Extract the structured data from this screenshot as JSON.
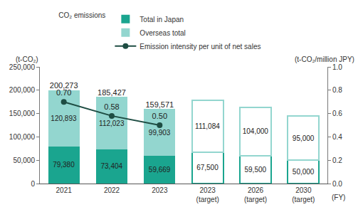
{
  "chart_data": {
    "type": "bar",
    "stacked": true,
    "data_labels": true,
    "grid": false,
    "legend": "top",
    "legend_title": "CO₂ emissions",
    "y_label": "(t-CO₂)",
    "y2_label": "(t-CO₂/million JPY)",
    "x_label": "(FY)",
    "categories": [
      "2021",
      "2022",
      "2023",
      "2023\n(target)",
      "2026\n(target)",
      "2030\n(target)"
    ],
    "series": [
      {
        "name": "Total in Japan",
        "color": "#1aa58f",
        "values": [
          79380,
          73404,
          59669,
          null,
          null,
          null
        ],
        "value_labels": [
          "79,380",
          "73,404",
          "59,669",
          null,
          null,
          null
        ]
      },
      {
        "name": "Overseas total",
        "color": "#93d6cf",
        "values": [
          120893,
          112023,
          99903,
          null,
          null,
          null
        ],
        "value_labels": [
          "120,893",
          "112,023",
          "99,903",
          null,
          null,
          null
        ]
      },
      {
        "color": "#1aa58f",
        "marker": "hollow",
        "values": [
          null,
          null,
          null,
          67500,
          59500,
          50000
        ],
        "value_labels": [
          null,
          null,
          null,
          "67,500",
          "59,500",
          "50,000"
        ]
      },
      {
        "color": "#93d6cf",
        "marker": "hollow",
        "values": [
          null,
          null,
          null,
          111084,
          104000,
          95000
        ],
        "value_labels": [
          null,
          null,
          null,
          "111,084",
          "104,000",
          "95,000"
        ]
      },
      {
        "name": "Emission intensity per unit of net sales",
        "type": "line",
        "axis": "y2",
        "color": "#1e4d43",
        "marker": "circle",
        "values": [
          0.7,
          0.58,
          0.5,
          null,
          null,
          null
        ],
        "value_labels": [
          "0.70",
          "0.58",
          "0.50",
          null,
          null,
          null
        ]
      }
    ],
    "totals": {
      "values": [
        200273,
        185427,
        159571,
        null,
        null,
        null
      ],
      "value_labels": [
        "200,273",
        "185,427",
        "159,571",
        null,
        null,
        null
      ]
    },
    "ylim": [
      0,
      250000
    ],
    "yticks": [
      0,
      {
        "value": 50000,
        "label": "50,000"
      },
      {
        "value": 100000,
        "label": "100,000"
      },
      {
        "value": 150000,
        "label": "150,000"
      },
      {
        "value": 200000,
        "label": "200,000"
      },
      {
        "value": 250000,
        "label": "250,000"
      }
    ],
    "y2lim": [
      0,
      1.0
    ],
    "y2ticks": [
      {
        "value": 0,
        "label": "0.0"
      },
      0.2,
      0.4,
      0.6,
      0.8,
      {
        "value": 1.0,
        "label": "1.0"
      }
    ]
  }
}
